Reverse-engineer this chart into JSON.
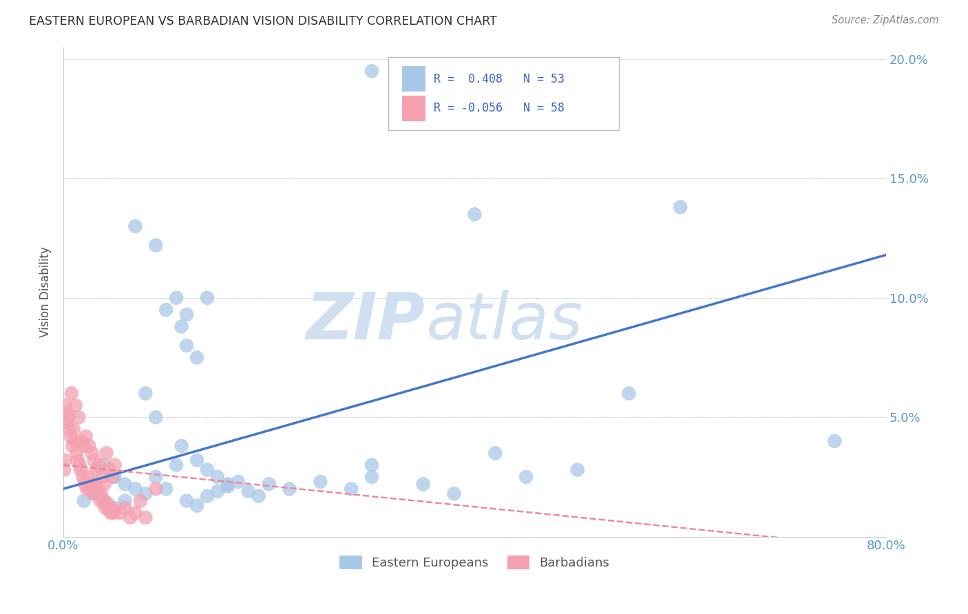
{
  "title": "EASTERN EUROPEAN VS BARBADIAN VISION DISABILITY CORRELATION CHART",
  "source": "Source: ZipAtlas.com",
  "ylabel": "Vision Disability",
  "xlim": [
    0,
    0.8
  ],
  "ylim": [
    0,
    0.205
  ],
  "xticks": [
    0.0,
    0.8
  ],
  "xticklabels": [
    "0.0%",
    "80.0%"
  ],
  "yticks": [
    0.0,
    0.05,
    0.1,
    0.15,
    0.2
  ],
  "yticklabels": [
    "",
    "5.0%",
    "10.0%",
    "15.0%",
    "20.0%"
  ],
  "blue_color": "#A8C8E8",
  "pink_color": "#F4A0B0",
  "blue_line_color": "#4477CC",
  "pink_line_color": "#EE8899",
  "axis_tick_color": "#5599CC",
  "watermark_color": "#D0E0F0",
  "background_color": "#FFFFFF",
  "grid_color": "#CCCCCC",
  "legend_r_color": "#3366CC",
  "blue_scatter_x": [
    0.3,
    0.07,
    0.09,
    0.1,
    0.115,
    0.12,
    0.12,
    0.11,
    0.13,
    0.14,
    0.08,
    0.09,
    0.115,
    0.4,
    0.6,
    0.75,
    0.04,
    0.05,
    0.06,
    0.07,
    0.09,
    0.11,
    0.13,
    0.14,
    0.15,
    0.16,
    0.3,
    0.45,
    0.55,
    0.02,
    0.03,
    0.04,
    0.05,
    0.06,
    0.08,
    0.1,
    0.12,
    0.13,
    0.14,
    0.15,
    0.16,
    0.17,
    0.18,
    0.19,
    0.2,
    0.22,
    0.25,
    0.28,
    0.3,
    0.35,
    0.38,
    0.42,
    0.5
  ],
  "blue_scatter_y": [
    0.195,
    0.13,
    0.122,
    0.095,
    0.088,
    0.093,
    0.08,
    0.1,
    0.075,
    0.1,
    0.06,
    0.05,
    0.038,
    0.135,
    0.138,
    0.04,
    0.03,
    0.025,
    0.022,
    0.02,
    0.025,
    0.03,
    0.032,
    0.028,
    0.025,
    0.022,
    0.025,
    0.025,
    0.06,
    0.015,
    0.018,
    0.015,
    0.012,
    0.015,
    0.018,
    0.02,
    0.015,
    0.013,
    0.017,
    0.019,
    0.021,
    0.023,
    0.019,
    0.017,
    0.022,
    0.02,
    0.023,
    0.02,
    0.03,
    0.022,
    0.018,
    0.035,
    0.028
  ],
  "pink_scatter_x": [
    0.005,
    0.008,
    0.01,
    0.012,
    0.015,
    0.018,
    0.02,
    0.022,
    0.025,
    0.028,
    0.03,
    0.032,
    0.035,
    0.038,
    0.04,
    0.042,
    0.045,
    0.048,
    0.05,
    0.002,
    0.003,
    0.004,
    0.006,
    0.007,
    0.009,
    0.011,
    0.013,
    0.014,
    0.016,
    0.017,
    0.019,
    0.021,
    0.023,
    0.024,
    0.026,
    0.027,
    0.029,
    0.031,
    0.033,
    0.034,
    0.036,
    0.037,
    0.039,
    0.041,
    0.043,
    0.044,
    0.046,
    0.047,
    0.049,
    0.055,
    0.06,
    0.065,
    0.07,
    0.075,
    0.08,
    0.09,
    0.001,
    0.002
  ],
  "pink_scatter_y": [
    0.05,
    0.06,
    0.045,
    0.055,
    0.05,
    0.04,
    0.038,
    0.042,
    0.038,
    0.035,
    0.032,
    0.028,
    0.03,
    0.025,
    0.022,
    0.035,
    0.028,
    0.025,
    0.03,
    0.055,
    0.048,
    0.052,
    0.045,
    0.042,
    0.038,
    0.04,
    0.035,
    0.032,
    0.03,
    0.028,
    0.025,
    0.022,
    0.02,
    0.025,
    0.022,
    0.02,
    0.018,
    0.022,
    0.02,
    0.018,
    0.015,
    0.018,
    0.015,
    0.012,
    0.014,
    0.012,
    0.01,
    0.012,
    0.01,
    0.01,
    0.012,
    0.008,
    0.01,
    0.015,
    0.008,
    0.02,
    0.028,
    0.032
  ],
  "blue_line_y_start": 0.02,
  "blue_line_y_end": 0.118,
  "pink_line_y_start": 0.03,
  "pink_line_y_end": -0.005
}
